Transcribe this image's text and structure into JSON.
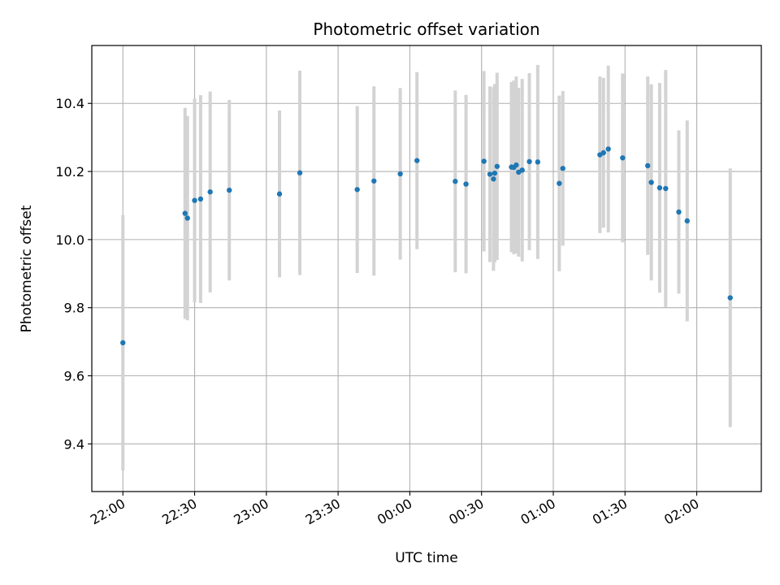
{
  "chart_data": {
    "type": "scatter",
    "title": "Photometric offset variation",
    "xlabel": "UTC time",
    "ylabel": "Photometric offset",
    "x_unit": "UTC time (date-times)",
    "xlim": [
      "2024-01-01T21:47:00",
      "2024-01-02T02:27:00"
    ],
    "ylim": [
      9.26,
      10.57
    ],
    "x_ticks": [
      {
        "t": "2024-01-01T22:00:00",
        "label": "22:00"
      },
      {
        "t": "2024-01-01T22:30:00",
        "label": "22:30"
      },
      {
        "t": "2024-01-01T23:00:00",
        "label": "23:00"
      },
      {
        "t": "2024-01-01T23:30:00",
        "label": "23:30"
      },
      {
        "t": "2024-01-02T00:00:00",
        "label": "00:00"
      },
      {
        "t": "2024-01-02T00:30:00",
        "label": "00:30"
      },
      {
        "t": "2024-01-02T01:00:00",
        "label": "01:00"
      },
      {
        "t": "2024-01-02T01:30:00",
        "label": "01:30"
      },
      {
        "t": "2024-01-02T02:00:00",
        "label": "02:00"
      }
    ],
    "y_ticks": [
      {
        "v": 9.4,
        "label": "9.4"
      },
      {
        "v": 9.6,
        "label": "9.6"
      },
      {
        "v": 9.8,
        "label": "9.8"
      },
      {
        "v": 10.0,
        "label": "10.0"
      },
      {
        "v": 10.2,
        "label": "10.2"
      },
      {
        "v": 10.4,
        "label": "10.4"
      }
    ],
    "grid": true,
    "point_color": "#1f77b4",
    "errorbar_color": "#d3d3d3",
    "points": [
      {
        "t": "2024-01-01T22:00:00",
        "y": 9.697,
        "err": 0.375
      },
      {
        "t": "2024-01-01T22:26:00",
        "y": 10.077,
        "err": 0.31
      },
      {
        "t": "2024-01-01T22:27:00",
        "y": 10.063,
        "err": 0.3
      },
      {
        "t": "2024-01-01T22:30:00",
        "y": 10.115,
        "err": 0.3
      },
      {
        "t": "2024-01-01T22:32:30",
        "y": 10.119,
        "err": 0.305
      },
      {
        "t": "2024-01-01T22:36:30",
        "y": 10.14,
        "err": 0.295
      },
      {
        "t": "2024-01-01T22:44:30",
        "y": 10.145,
        "err": 0.265
      },
      {
        "t": "2024-01-01T23:05:30",
        "y": 10.134,
        "err": 0.245
      },
      {
        "t": "2024-01-01T23:14:00",
        "y": 10.196,
        "err": 0.3
      },
      {
        "t": "2024-01-01T23:38:00",
        "y": 10.147,
        "err": 0.245
      },
      {
        "t": "2024-01-01T23:45:00",
        "y": 10.172,
        "err": 0.278
      },
      {
        "t": "2024-01-01T23:56:00",
        "y": 10.193,
        "err": 0.252
      },
      {
        "t": "2024-01-02T00:03:00",
        "y": 10.232,
        "err": 0.26
      },
      {
        "t": "2024-01-02T00:19:00",
        "y": 10.171,
        "err": 0.267
      },
      {
        "t": "2024-01-02T00:23:30",
        "y": 10.163,
        "err": 0.262
      },
      {
        "t": "2024-01-02T00:31:00",
        "y": 10.23,
        "err": 0.265
      },
      {
        "t": "2024-01-02T00:33:30",
        "y": 10.192,
        "err": 0.258
      },
      {
        "t": "2024-01-02T00:35:00",
        "y": 10.178,
        "err": 0.27
      },
      {
        "t": "2024-01-02T00:35:30",
        "y": 10.195,
        "err": 0.262
      },
      {
        "t": "2024-01-02T00:36:30",
        "y": 10.215,
        "err": 0.275
      },
      {
        "t": "2024-01-02T00:42:30",
        "y": 10.213,
        "err": 0.25
      },
      {
        "t": "2024-01-02T00:43:30",
        "y": 10.212,
        "err": 0.255
      },
      {
        "t": "2024-01-02T00:44:30",
        "y": 10.219,
        "err": 0.26
      },
      {
        "t": "2024-01-02T00:45:30",
        "y": 10.198,
        "err": 0.248
      },
      {
        "t": "2024-01-02T00:47:00",
        "y": 10.204,
        "err": 0.268
      },
      {
        "t": "2024-01-02T00:50:00",
        "y": 10.229,
        "err": 0.26
      },
      {
        "t": "2024-01-02T00:53:30",
        "y": 10.228,
        "err": 0.285
      },
      {
        "t": "2024-01-02T01:02:30",
        "y": 10.165,
        "err": 0.258
      },
      {
        "t": "2024-01-02T01:04:00",
        "y": 10.209,
        "err": 0.227
      },
      {
        "t": "2024-01-02T01:19:30",
        "y": 10.249,
        "err": 0.23
      },
      {
        "t": "2024-01-02T01:21:00",
        "y": 10.255,
        "err": 0.22
      },
      {
        "t": "2024-01-02T01:23:00",
        "y": 10.266,
        "err": 0.245
      },
      {
        "t": "2024-01-02T01:29:00",
        "y": 10.24,
        "err": 0.248
      },
      {
        "t": "2024-01-02T01:39:30",
        "y": 10.217,
        "err": 0.262
      },
      {
        "t": "2024-01-02T01:41:00",
        "y": 10.168,
        "err": 0.288
      },
      {
        "t": "2024-01-02T01:44:30",
        "y": 10.152,
        "err": 0.308
      },
      {
        "t": "2024-01-02T01:47:00",
        "y": 10.15,
        "err": 0.348
      },
      {
        "t": "2024-01-02T01:52:30",
        "y": 10.081,
        "err": 0.24
      },
      {
        "t": "2024-01-02T01:56:00",
        "y": 10.055,
        "err": 0.295
      },
      {
        "t": "2024-01-02T02:14:00",
        "y": 9.829,
        "err": 0.38
      }
    ]
  }
}
